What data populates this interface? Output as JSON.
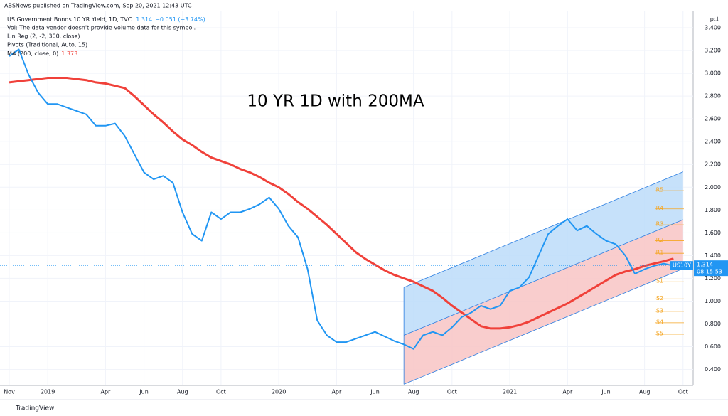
{
  "chart_data": {
    "type": "line",
    "publisher": "ABSNews published on TradingView.com, Sep 20, 2021 12:43 UTC",
    "annotation": "10 YR 1D with 200MA",
    "last_price": 1.314,
    "change": "−0.051 (−3.74%)",
    "ma_last": 1.373,
    "info_lines": [
      "Vol: The data vendor doesn't provide volume data for this symbol.",
      "Lin Reg (2, -2, 300, close)",
      "Pivots (Traditional, Auto, 15)"
    ],
    "symbol": "US10Y",
    "countdown": "08:15:53",
    "unit": "pct",
    "brand": "TradingView",
    "categories": [
      "Nov",
      null,
      null,
      null,
      "2019",
      null,
      null,
      null,
      null,
      null,
      "Apr",
      null,
      null,
      null,
      "Jun",
      null,
      null,
      null,
      "Aug",
      null,
      null,
      null,
      "Oct",
      null,
      null,
      null,
      null,
      null,
      "2020",
      null,
      null,
      null,
      null,
      null,
      "Apr",
      null,
      null,
      null,
      "Jun",
      null,
      null,
      null,
      "Aug",
      null,
      null,
      null,
      "Oct",
      null,
      null,
      null,
      null,
      null,
      "2021",
      null,
      null,
      null,
      null,
      null,
      "Apr",
      null,
      null,
      null,
      "Jun",
      null,
      null,
      null,
      "Aug",
      null,
      null,
      null,
      "Oct"
    ],
    "series": [
      {
        "name": "US Government Bonds 10 YR Yield, 1D, TVC",
        "color": "#2196f3",
        "values": [
          3.15,
          3.21,
          2.99,
          2.83,
          2.73,
          2.73,
          2.7,
          2.67,
          2.64,
          2.54,
          2.54,
          2.56,
          2.45,
          2.29,
          2.13,
          2.07,
          2.1,
          2.04,
          1.78,
          1.59,
          1.53,
          1.78,
          1.72,
          1.78,
          1.78,
          1.81,
          1.85,
          1.91,
          1.81,
          1.66,
          1.56,
          1.28,
          0.83,
          0.7,
          0.64,
          0.64,
          0.67,
          0.7,
          0.73,
          0.69,
          0.65,
          0.62,
          0.58,
          0.7,
          0.73,
          0.7,
          0.77,
          0.86,
          0.9,
          0.96,
          0.93,
          0.96,
          1.09,
          1.12,
          1.21,
          1.4,
          1.59,
          1.66,
          1.72,
          1.62,
          1.66,
          1.59,
          1.53,
          1.5,
          1.4,
          1.24,
          1.28,
          1.31,
          1.33,
          1.31,
          null
        ]
      },
      {
        "name": "MA (200, close, 0)",
        "color": "#f0413a",
        "values": [
          2.92,
          2.93,
          2.94,
          2.95,
          2.96,
          2.96,
          2.96,
          2.95,
          2.94,
          2.92,
          2.91,
          2.89,
          2.87,
          2.8,
          2.72,
          2.64,
          2.57,
          2.49,
          2.42,
          2.37,
          2.31,
          2.26,
          2.23,
          2.2,
          2.16,
          2.13,
          2.09,
          2.04,
          2.0,
          1.94,
          1.87,
          1.81,
          1.74,
          1.67,
          1.59,
          1.51,
          1.43,
          1.37,
          1.32,
          1.27,
          1.23,
          1.2,
          1.17,
          1.13,
          1.09,
          1.03,
          0.96,
          0.9,
          0.84,
          0.78,
          0.76,
          0.76,
          0.77,
          0.79,
          0.82,
          0.86,
          0.9,
          0.94,
          0.98,
          1.03,
          1.08,
          1.13,
          1.18,
          1.23,
          1.26,
          1.28,
          1.31,
          1.33,
          1.35,
          1.373,
          null
        ]
      }
    ],
    "regression_channel": {
      "upper_fill": "#bcdcf9",
      "lower_fill": "#f8c4c4",
      "line_color": "#2a7de1",
      "upper": [
        null,
        null,
        null,
        null,
        null,
        null,
        null,
        null,
        null,
        null,
        null,
        null,
        null,
        null,
        null,
        null,
        null,
        null,
        null,
        null,
        null,
        null,
        null,
        null,
        null,
        null,
        null,
        null,
        null,
        null,
        null,
        null,
        null,
        null,
        null,
        null,
        null,
        null,
        null,
        null,
        null,
        1.12,
        1.155,
        1.19,
        1.225,
        1.26,
        1.295,
        1.33,
        1.365,
        1.4,
        1.435,
        1.47,
        1.505,
        1.54,
        1.575,
        1.61,
        1.645,
        1.68,
        1.715,
        1.75,
        1.785,
        1.82,
        1.855,
        1.89,
        1.925,
        1.96,
        1.995,
        2.03,
        2.065,
        2.1,
        2.135
      ],
      "middle": [
        null,
        null,
        null,
        null,
        null,
        null,
        null,
        null,
        null,
        null,
        null,
        null,
        null,
        null,
        null,
        null,
        null,
        null,
        null,
        null,
        null,
        null,
        null,
        null,
        null,
        null,
        null,
        null,
        null,
        null,
        null,
        null,
        null,
        null,
        null,
        null,
        null,
        null,
        null,
        null,
        null,
        0.7,
        0.735,
        0.77,
        0.805,
        0.84,
        0.875,
        0.91,
        0.945,
        0.98,
        1.015,
        1.05,
        1.085,
        1.12,
        1.155,
        1.19,
        1.225,
        1.26,
        1.295,
        1.33,
        1.365,
        1.4,
        1.435,
        1.47,
        1.505,
        1.54,
        1.575,
        1.61,
        1.645,
        1.68,
        1.715
      ],
      "lower": [
        null,
        null,
        null,
        null,
        null,
        null,
        null,
        null,
        null,
        null,
        null,
        null,
        null,
        null,
        null,
        null,
        null,
        null,
        null,
        null,
        null,
        null,
        null,
        null,
        null,
        null,
        null,
        null,
        null,
        null,
        null,
        null,
        null,
        null,
        null,
        null,
        null,
        null,
        null,
        null,
        null,
        0.27,
        0.305,
        0.34,
        0.375,
        0.41,
        0.445,
        0.48,
        0.515,
        0.55,
        0.585,
        0.62,
        0.655,
        0.69,
        0.725,
        0.76,
        0.795,
        0.83,
        0.865,
        0.9,
        0.935,
        0.97,
        1.005,
        1.04,
        1.075,
        1.11,
        1.145,
        1.18,
        1.215,
        1.25,
        1.285
      ]
    },
    "pivot_color": "#f5a623",
    "pivots": [
      {
        "label": "R5",
        "value": 1.97
      },
      {
        "label": "R4",
        "value": 1.81
      },
      {
        "label": "R3",
        "value": 1.67
      },
      {
        "label": "R2",
        "value": 1.53
      },
      {
        "label": "R1",
        "value": 1.42
      },
      {
        "label": "S1",
        "value": 1.17
      },
      {
        "label": "S2",
        "value": 1.02
      },
      {
        "label": "S3",
        "value": 0.91
      },
      {
        "label": "S4",
        "value": 0.81
      },
      {
        "label": "S5",
        "value": 0.71
      }
    ],
    "ylim": [
      0.26,
      3.55
    ],
    "yticks": [
      {
        "value": 0.4,
        "label": "0.400"
      },
      {
        "value": 0.6,
        "label": "0.600"
      },
      {
        "value": 0.8,
        "label": "0.800"
      },
      {
        "value": 1.0,
        "label": "1.000"
      },
      {
        "value": 1.2,
        "label": "1.200"
      },
      {
        "value": 1.4,
        "label": "1.400"
      },
      {
        "value": 1.6,
        "label": "1.600"
      },
      {
        "value": 1.8,
        "label": "1.800"
      },
      {
        "value": 2.0,
        "label": "2.000"
      },
      {
        "value": 2.2,
        "label": "2.200"
      },
      {
        "value": 2.4,
        "label": "2.400"
      },
      {
        "value": 2.6,
        "label": "2.600"
      },
      {
        "value": 2.8,
        "label": "2.800"
      },
      {
        "value": 3.0,
        "label": "3.000"
      },
      {
        "value": 3.2,
        "label": "3.200"
      },
      {
        "value": 3.4,
        "label": "3.400"
      }
    ],
    "grid": true
  }
}
